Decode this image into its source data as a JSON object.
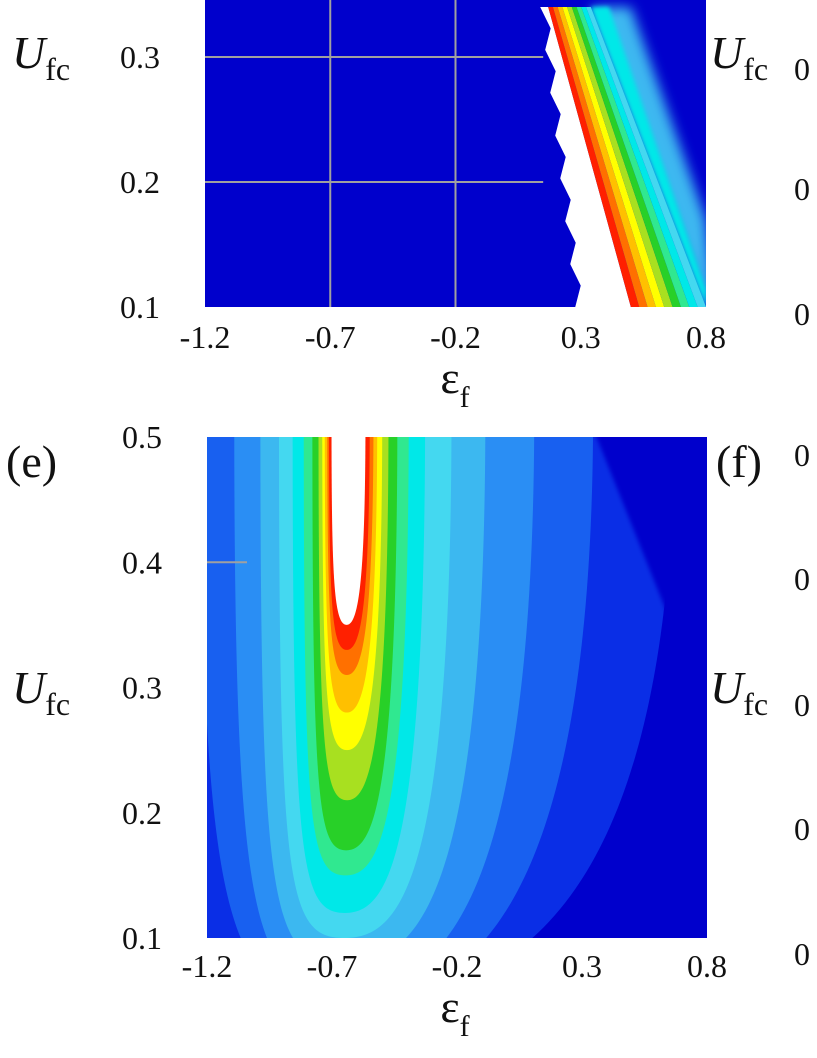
{
  "colors": {
    "background": "#0000cc",
    "contour_scale": [
      "#0000cc",
      "#0a2ee6",
      "#1860f0",
      "#2a8ef4",
      "#3cb8f0",
      "#44d8f0",
      "#00e8e8",
      "#30e890",
      "#28d028",
      "#a8e020",
      "#ffff00",
      "#ffc000",
      "#ff7000",
      "#ff2000",
      "#ffffff"
    ],
    "gridline": "#a0a0a0",
    "text": "#111111"
  },
  "chart_data": [
    {
      "type": "heatmap",
      "panel_label": "",
      "visible_y_range": [
        0.1,
        0.34
      ],
      "xlim": [
        -1.2,
        0.8
      ],
      "ylim": [
        0.1,
        0.5
      ],
      "x_ticks": [
        "-1.2",
        "-0.7",
        "-0.2",
        "0.3",
        "0.8"
      ],
      "y_ticks": [
        "0.1",
        "0.2",
        "0.3"
      ],
      "xlabel": "ε",
      "xlabel_sub": "f",
      "ylabel": "U",
      "ylabel_sub": "fc",
      "grid": true,
      "gridlines_x": [
        -0.7,
        -0.2
      ],
      "gridlines_y": [
        0.2,
        0.3
      ],
      "features": {
        "white_region_left_edge": [
          [
            0.15,
            0.34
          ],
          [
            0.29,
            0.1
          ]
        ],
        "colored_band_upper_edge": [
          [
            0.17,
            0.34
          ],
          [
            0.5,
            0.1
          ]
        ],
        "colored_band_lower_edge": [
          [
            0.34,
            0.34
          ],
          [
            0.8,
            0.1
          ]
        ],
        "gradient_outer_edge": [
          [
            0.5,
            0.34
          ],
          [
            0.8,
            0.17
          ]
        ]
      }
    },
    {
      "type": "heatmap",
      "panel_label": "(e)",
      "xlim": [
        -1.2,
        0.8
      ],
      "ylim": [
        0.1,
        0.5
      ],
      "x_ticks": [
        "-1.2",
        "-0.7",
        "-0.2",
        "0.3",
        "0.8"
      ],
      "y_ticks": [
        "0.1",
        "0.2",
        "0.3",
        "0.4",
        "0.5"
      ],
      "xlabel": "ε",
      "xlabel_sub": "f",
      "ylabel": "U",
      "ylabel_sub": "fc",
      "grid": false,
      "features": {
        "white_region": {
          "x_range": [
            -0.8,
            -0.6
          ],
          "y_range": [
            0.35,
            0.5
          ]
        },
        "peak_ridge_x": -0.68,
        "green_center": [
          -0.62,
          0.19
        ],
        "outer_contour_right": [
          [
            -0.34,
            0.5
          ],
          [
            0.8,
            0.15
          ]
        ],
        "dark_corner_region": [
          [
            0.35,
            0.5
          ],
          [
            0.8,
            0.5
          ],
          [
            0.8,
            0.27
          ]
        ]
      }
    }
  ],
  "right_column": {
    "ylabel": "U",
    "ylabel_sub": "fc",
    "panel_f_label": "(f)",
    "tick_fragment": "0"
  }
}
